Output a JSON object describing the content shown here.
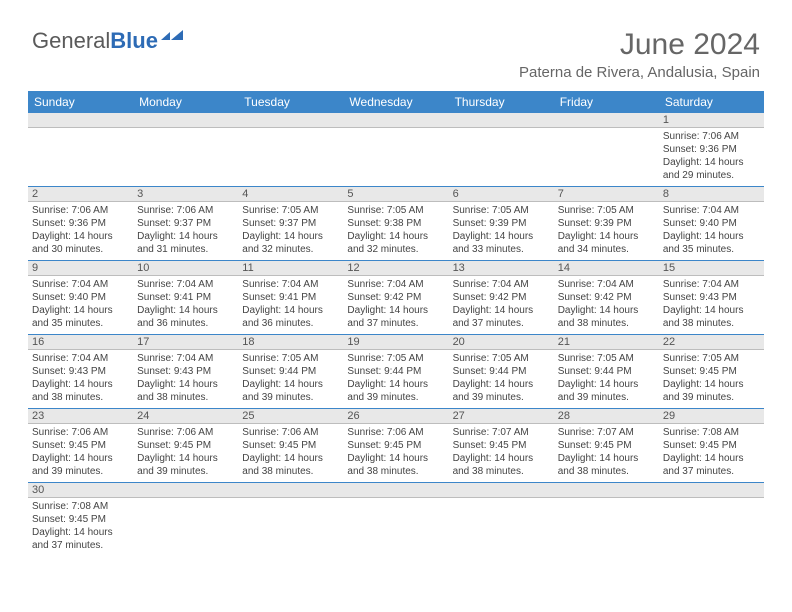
{
  "logo": {
    "text1": "General",
    "text2": "Blue"
  },
  "title": "June 2024",
  "location": "Paterna de Rivera, Andalusia, Spain",
  "weekdays": [
    "Sunday",
    "Monday",
    "Tuesday",
    "Wednesday",
    "Thursday",
    "Friday",
    "Saturday"
  ],
  "header_bg": "#3c86c9",
  "rule_color": "#3c86c9",
  "daynum_bg": "#e8e8e8",
  "first_weekday_index": 6,
  "days": [
    {
      "n": 1,
      "sr": "7:06 AM",
      "ss": "9:36 PM",
      "dl": "14 hours and 29 minutes."
    },
    {
      "n": 2,
      "sr": "7:06 AM",
      "ss": "9:36 PM",
      "dl": "14 hours and 30 minutes."
    },
    {
      "n": 3,
      "sr": "7:06 AM",
      "ss": "9:37 PM",
      "dl": "14 hours and 31 minutes."
    },
    {
      "n": 4,
      "sr": "7:05 AM",
      "ss": "9:37 PM",
      "dl": "14 hours and 32 minutes."
    },
    {
      "n": 5,
      "sr": "7:05 AM",
      "ss": "9:38 PM",
      "dl": "14 hours and 32 minutes."
    },
    {
      "n": 6,
      "sr": "7:05 AM",
      "ss": "9:39 PM",
      "dl": "14 hours and 33 minutes."
    },
    {
      "n": 7,
      "sr": "7:05 AM",
      "ss": "9:39 PM",
      "dl": "14 hours and 34 minutes."
    },
    {
      "n": 8,
      "sr": "7:04 AM",
      "ss": "9:40 PM",
      "dl": "14 hours and 35 minutes."
    },
    {
      "n": 9,
      "sr": "7:04 AM",
      "ss": "9:40 PM",
      "dl": "14 hours and 35 minutes."
    },
    {
      "n": 10,
      "sr": "7:04 AM",
      "ss": "9:41 PM",
      "dl": "14 hours and 36 minutes."
    },
    {
      "n": 11,
      "sr": "7:04 AM",
      "ss": "9:41 PM",
      "dl": "14 hours and 36 minutes."
    },
    {
      "n": 12,
      "sr": "7:04 AM",
      "ss": "9:42 PM",
      "dl": "14 hours and 37 minutes."
    },
    {
      "n": 13,
      "sr": "7:04 AM",
      "ss": "9:42 PM",
      "dl": "14 hours and 37 minutes."
    },
    {
      "n": 14,
      "sr": "7:04 AM",
      "ss": "9:42 PM",
      "dl": "14 hours and 38 minutes."
    },
    {
      "n": 15,
      "sr": "7:04 AM",
      "ss": "9:43 PM",
      "dl": "14 hours and 38 minutes."
    },
    {
      "n": 16,
      "sr": "7:04 AM",
      "ss": "9:43 PM",
      "dl": "14 hours and 38 minutes."
    },
    {
      "n": 17,
      "sr": "7:04 AM",
      "ss": "9:43 PM",
      "dl": "14 hours and 38 minutes."
    },
    {
      "n": 18,
      "sr": "7:05 AM",
      "ss": "9:44 PM",
      "dl": "14 hours and 39 minutes."
    },
    {
      "n": 19,
      "sr": "7:05 AM",
      "ss": "9:44 PM",
      "dl": "14 hours and 39 minutes."
    },
    {
      "n": 20,
      "sr": "7:05 AM",
      "ss": "9:44 PM",
      "dl": "14 hours and 39 minutes."
    },
    {
      "n": 21,
      "sr": "7:05 AM",
      "ss": "9:44 PM",
      "dl": "14 hours and 39 minutes."
    },
    {
      "n": 22,
      "sr": "7:05 AM",
      "ss": "9:45 PM",
      "dl": "14 hours and 39 minutes."
    },
    {
      "n": 23,
      "sr": "7:06 AM",
      "ss": "9:45 PM",
      "dl": "14 hours and 39 minutes."
    },
    {
      "n": 24,
      "sr": "7:06 AM",
      "ss": "9:45 PM",
      "dl": "14 hours and 39 minutes."
    },
    {
      "n": 25,
      "sr": "7:06 AM",
      "ss": "9:45 PM",
      "dl": "14 hours and 38 minutes."
    },
    {
      "n": 26,
      "sr": "7:06 AM",
      "ss": "9:45 PM",
      "dl": "14 hours and 38 minutes."
    },
    {
      "n": 27,
      "sr": "7:07 AM",
      "ss": "9:45 PM",
      "dl": "14 hours and 38 minutes."
    },
    {
      "n": 28,
      "sr": "7:07 AM",
      "ss": "9:45 PM",
      "dl": "14 hours and 38 minutes."
    },
    {
      "n": 29,
      "sr": "7:08 AM",
      "ss": "9:45 PM",
      "dl": "14 hours and 37 minutes."
    },
    {
      "n": 30,
      "sr": "7:08 AM",
      "ss": "9:45 PM",
      "dl": "14 hours and 37 minutes."
    }
  ],
  "labels": {
    "sunrise": "Sunrise:",
    "sunset": "Sunset:",
    "daylight": "Daylight:"
  }
}
